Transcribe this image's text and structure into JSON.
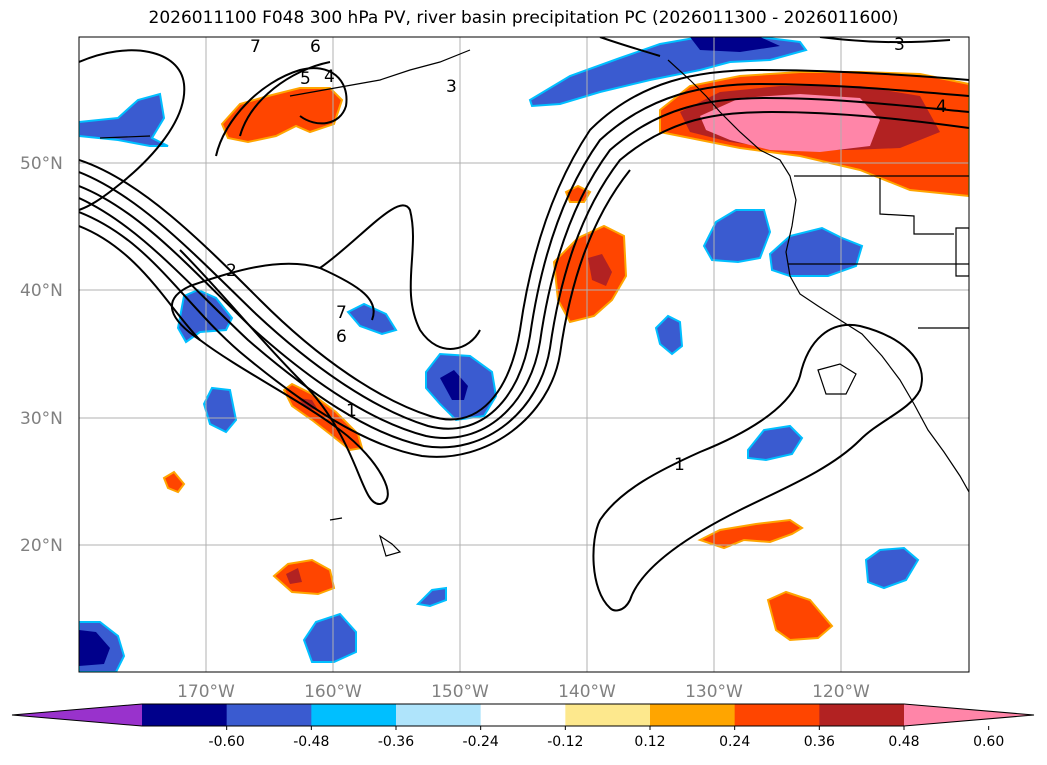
{
  "title": "2026011100 F048 300 hPa PV, river basin precipitation PC (2026011300 - 2026011600)",
  "lat_labels": [
    "50°N",
    "40°N",
    "30°N",
    "20°N"
  ],
  "lon_labels": [
    "170°W",
    "160°W",
    "150°W",
    "140°W",
    "130°W",
    "120°W"
  ],
  "pv_contour_labels": [
    "7",
    "6",
    "5",
    "4",
    "3",
    "3",
    "2",
    "7",
    "6",
    "1",
    "1",
    "4"
  ],
  "colorbar": {
    "tick_labels": [
      "-0.60",
      "-0.48",
      "-0.36",
      "-0.24",
      "-0.12",
      "0.12",
      "0.24",
      "0.36",
      "0.48",
      "0.60"
    ],
    "colors": [
      "#9932cc",
      "#00008b",
      "#3a5bd0",
      "#00bfff",
      "#afe4fb",
      "#ffffff",
      "#fde88d",
      "#ffa500",
      "#ff4500",
      "#b22222",
      "#ff85a8"
    ]
  },
  "chart_data": {
    "type": "map",
    "field_contours": "300 hPa PV",
    "field_shaded": "river basin precipitation PC",
    "valid_period": "2026011300 - 2026011600",
    "extent": {
      "lon": [
        -180,
        -110
      ],
      "lat": [
        10,
        60
      ]
    },
    "contour_levels": [
      1,
      2,
      3,
      4,
      5,
      6,
      7
    ],
    "color_levels": [
      -0.6,
      -0.48,
      -0.36,
      -0.24,
      -0.12,
      0.12,
      0.24,
      0.36,
      0.48,
      0.6
    ]
  }
}
